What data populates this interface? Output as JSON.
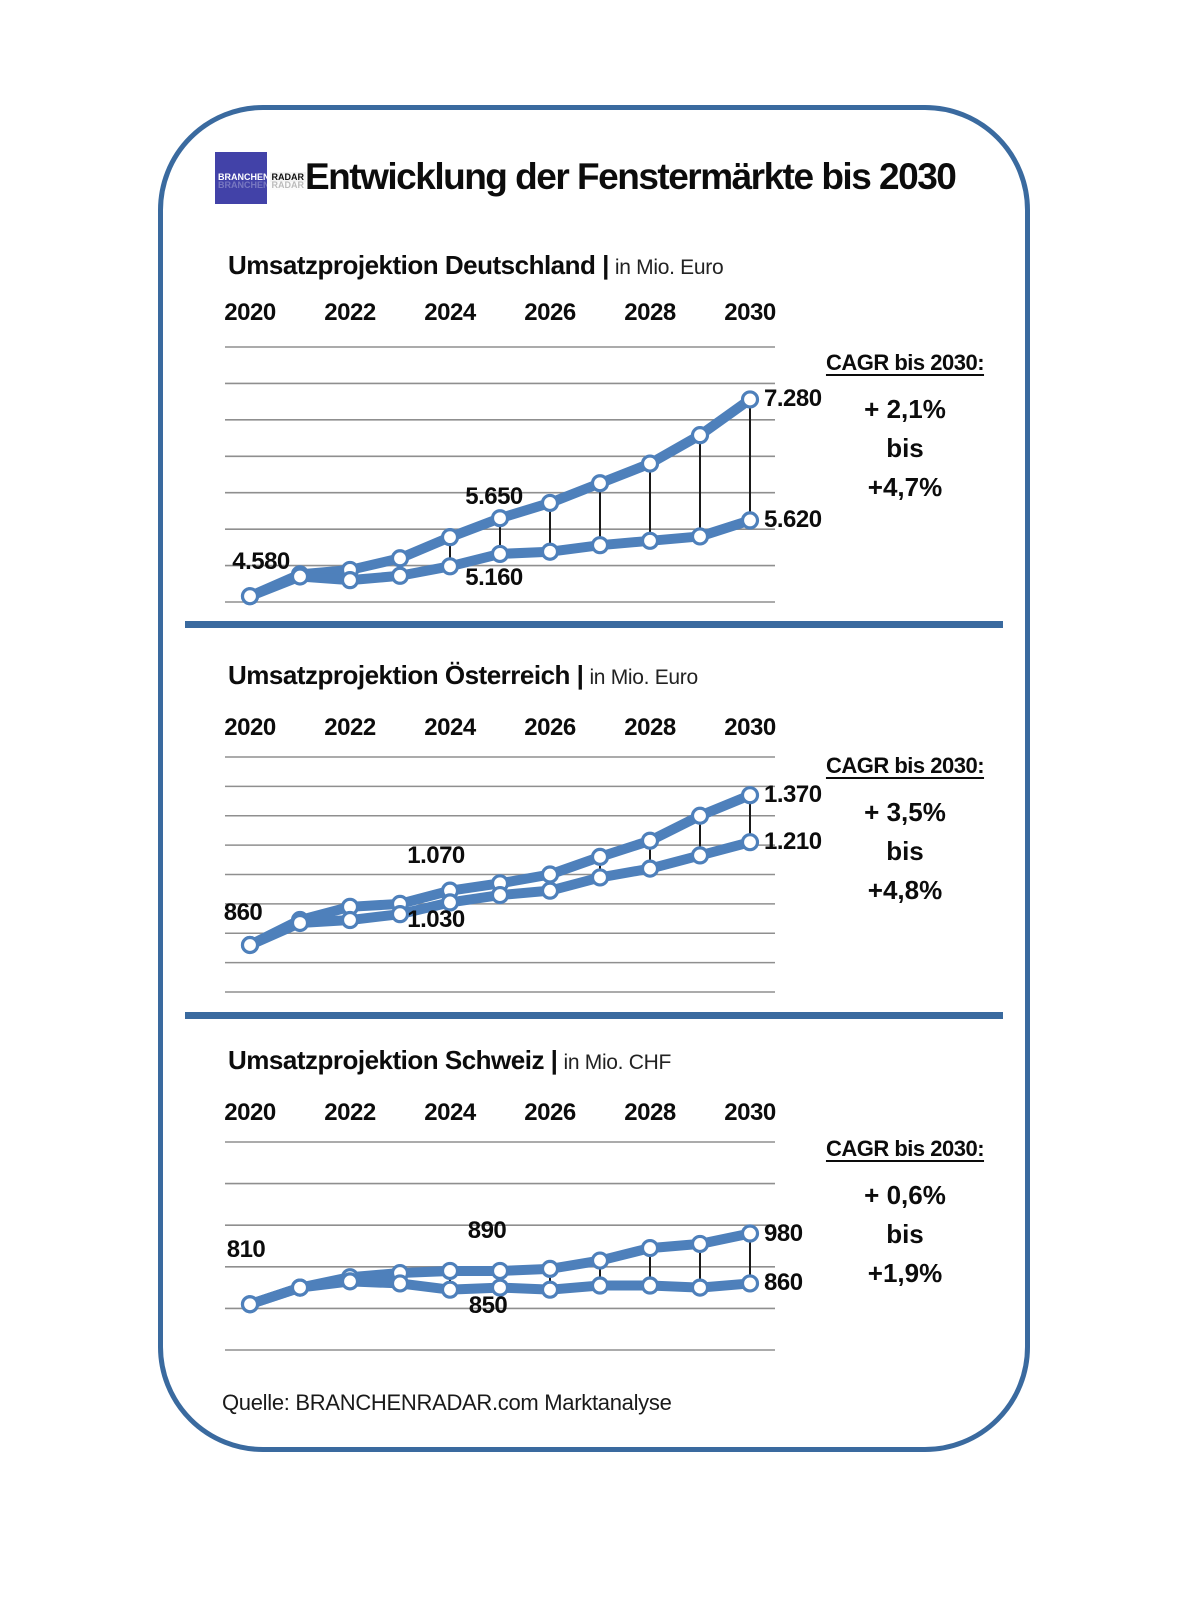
{
  "header": {
    "logo": {
      "primary": "BRANCHEN",
      "secondary": "RADAR"
    },
    "title": "Entwicklung der Fenstermärkte bis 2030"
  },
  "source": "Quelle: BRANCHENRADAR.com Marktanalyse",
  "colors": {
    "line": "#4e80bb",
    "frame": "#3a6a9f",
    "grid": "#8f8f8f",
    "connector": "#1a1a1a",
    "logo_blue": "#4242a8"
  },
  "chart_data": [
    {
      "type": "line",
      "title": "Umsatzprojektion Deutschland |",
      "unit": "in Mio. Euro",
      "x": [
        2020,
        2021,
        2022,
        2023,
        2024,
        2025,
        2026,
        2027,
        2028,
        2029,
        2030
      ],
      "x_ticklabels": [
        "2020",
        "2022",
        "2024",
        "2026",
        "2028",
        "2030"
      ],
      "ylim": [
        4500,
        8000
      ],
      "ystep": 500,
      "grid": true,
      "legend": "none",
      "series": [
        {
          "name": "upper",
          "values": [
            4580,
            4880,
            4940,
            5100,
            5390,
            5650,
            5860,
            6130,
            6400,
            6790,
            7280
          ]
        },
        {
          "name": "lower",
          "values": [
            4580,
            4850,
            4800,
            4860,
            4990,
            5160,
            5190,
            5280,
            5340,
            5400,
            5620
          ]
        }
      ],
      "annotations": [
        {
          "series": 0,
          "year": 2020,
          "text": "4.580",
          "pos": "above"
        },
        {
          "series": 0,
          "year": 2025,
          "text": "5.650",
          "pos": "above"
        },
        {
          "series": 1,
          "year": 2025,
          "text": "5.160",
          "pos": "below"
        },
        {
          "series": 0,
          "year": 2030,
          "text": "7.280",
          "pos": "right"
        },
        {
          "series": 1,
          "year": 2030,
          "text": "5.620",
          "pos": "right"
        }
      ],
      "cagr": {
        "heading": "CAGR bis 2030:",
        "lines": [
          "+ 2,1%",
          "bis",
          "+4,7%"
        ]
      }
    },
    {
      "type": "line",
      "title": "Umsatzprojektion Österreich |",
      "unit": "in Mio. Euro",
      "x": [
        2020,
        2021,
        2022,
        2023,
        2024,
        2025,
        2026,
        2027,
        2028,
        2029,
        2030
      ],
      "x_ticklabels": [
        "2020",
        "2022",
        "2024",
        "2026",
        "2028",
        "2030"
      ],
      "ylim": [
        700,
        1500
      ],
      "ystep": 100,
      "grid": true,
      "legend": "none",
      "series": [
        {
          "name": "upper",
          "values": [
            860,
            945,
            990,
            1000,
            1045,
            1070,
            1100,
            1160,
            1215,
            1300,
            1370
          ]
        },
        {
          "name": "lower",
          "values": [
            860,
            935,
            945,
            965,
            1005,
            1030,
            1045,
            1090,
            1120,
            1165,
            1210
          ]
        }
      ],
      "annotations": [
        {
          "series": 0,
          "year": 2020,
          "text": "860",
          "pos": "above"
        },
        {
          "series": 0,
          "year": 2025,
          "text": "1.070",
          "pos": "above"
        },
        {
          "series": 1,
          "year": 2025,
          "text": "1.030",
          "pos": "below"
        },
        {
          "series": 0,
          "year": 2030,
          "text": "1.370",
          "pos": "right"
        },
        {
          "series": 1,
          "year": 2030,
          "text": "1.210",
          "pos": "right"
        }
      ],
      "cagr": {
        "heading": "CAGR bis 2030:",
        "lines": [
          "+ 3,5%",
          "bis",
          "+4,8%"
        ]
      }
    },
    {
      "type": "line",
      "title": "Umsatzprojektion Schweiz |",
      "unit": "in Mio. CHF",
      "x": [
        2020,
        2021,
        2022,
        2023,
        2024,
        2025,
        2026,
        2027,
        2028,
        2029,
        2030
      ],
      "x_ticklabels": [
        "2020",
        "2022",
        "2024",
        "2026",
        "2028",
        "2030"
      ],
      "ylim": [
        700,
        1200
      ],
      "ystep": 100,
      "grid": true,
      "legend": "none",
      "series": [
        {
          "name": "upper",
          "values": [
            810,
            850,
            875,
            885,
            890,
            890,
            895,
            915,
            945,
            955,
            980
          ]
        },
        {
          "name": "lower",
          "values": [
            810,
            850,
            865,
            860,
            845,
            850,
            845,
            855,
            855,
            850,
            860
          ]
        }
      ],
      "annotations": [
        {
          "series": 0,
          "year": 2020,
          "text": "810",
          "pos": "above"
        },
        {
          "series": 0,
          "year": 2025,
          "text": "890",
          "pos": "above"
        },
        {
          "series": 1,
          "year": 2025,
          "text": "850",
          "pos": "below"
        },
        {
          "series": 0,
          "year": 2030,
          "text": "980",
          "pos": "right"
        },
        {
          "series": 1,
          "year": 2030,
          "text": "860",
          "pos": "right"
        }
      ],
      "cagr": {
        "heading": "CAGR bis 2030:",
        "lines": [
          "+ 0,6%",
          "bis",
          "+1,9%"
        ]
      }
    }
  ]
}
